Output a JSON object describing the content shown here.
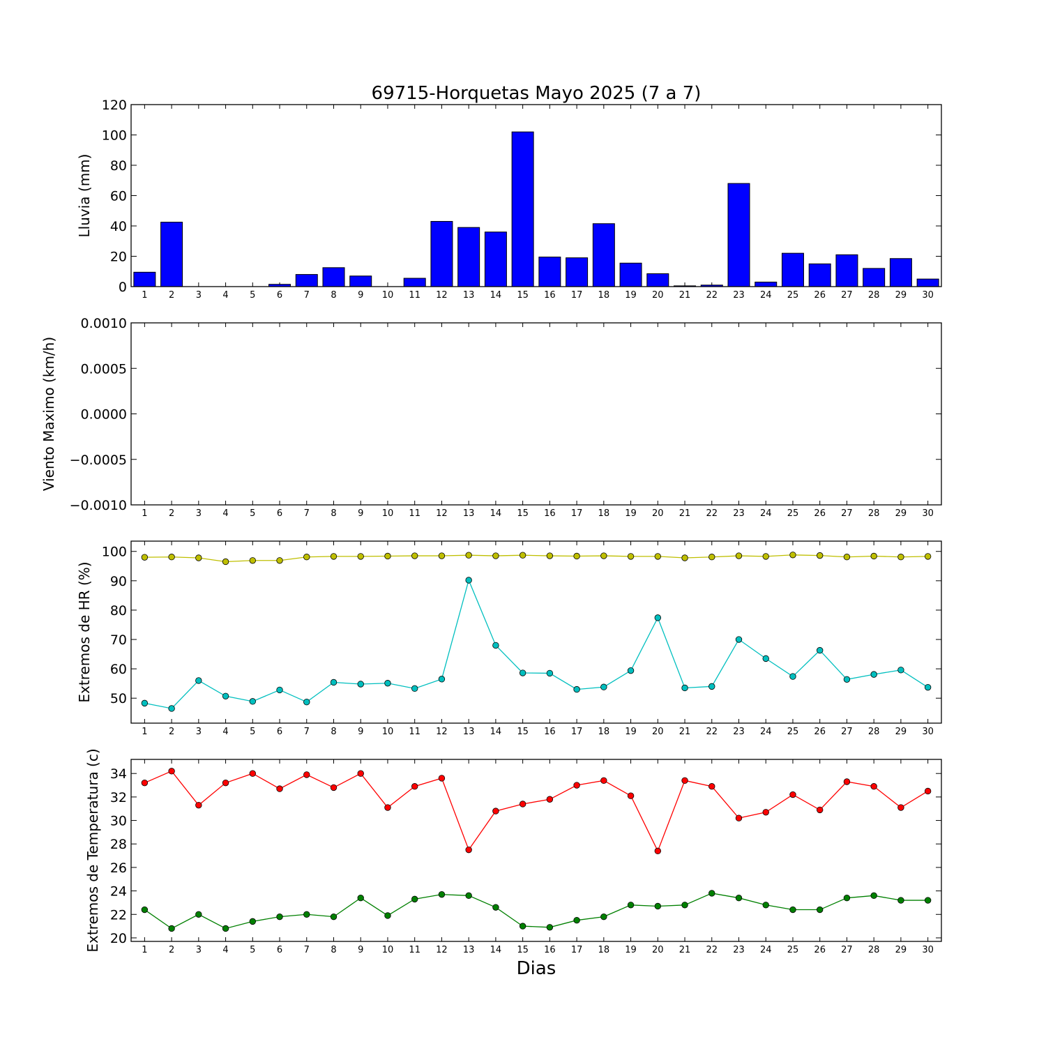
{
  "chart_data": {
    "title": "69715-Horquetas Mayo 2025  (7 a 7)",
    "xlabel": "Dias",
    "days": [
      1,
      2,
      3,
      4,
      5,
      6,
      7,
      8,
      9,
      10,
      11,
      12,
      13,
      14,
      15,
      16,
      17,
      18,
      19,
      20,
      21,
      22,
      23,
      24,
      25,
      26,
      27,
      28,
      29,
      30
    ],
    "panels": [
      {
        "type": "bar",
        "ylabel": "Lluvia (mm)",
        "ylim": [
          0,
          120
        ],
        "yticks": [
          "0",
          "20",
          "40",
          "60",
          "80",
          "100",
          "120"
        ],
        "series": [
          {
            "color": "#0000ff",
            "values": [
              9.5,
              42.5,
              0,
              0,
              0,
              1.5,
              8,
              12.5,
              7,
              0,
              5.5,
              43,
              39,
              36,
              102,
              19.5,
              19,
              41.5,
              15.5,
              8.5,
              0.5,
              1,
              68,
              3,
              22,
              15,
              21,
              12,
              18.5,
              5
            ]
          }
        ]
      },
      {
        "type": "line",
        "ylabel": "Viento Maximo (km/h)",
        "ylim": [
          -0.001,
          0.001
        ],
        "yticks": [
          "−0.0010",
          "−0.0005",
          "0.0000",
          "0.0005",
          "0.0010"
        ],
        "series": []
      },
      {
        "type": "line",
        "ylabel": "Extremos de HR (%)",
        "ylim": [
          41.5,
          103.5
        ],
        "yticks": [
          "50",
          "60",
          "70",
          "80",
          "90",
          "100"
        ],
        "series": [
          {
            "color": "#bfbf00",
            "values": [
              98,
              98.1,
              97.8,
              96.5,
              96.9,
              96.9,
              98.1,
              98.3,
              98.3,
              98.4,
              98.5,
              98.5,
              98.7,
              98.5,
              98.7,
              98.5,
              98.4,
              98.5,
              98.3,
              98.3,
              97.8,
              98.1,
              98.5,
              98.3,
              98.8,
              98.6,
              98.1,
              98.4,
              98.1,
              98.3
            ]
          },
          {
            "color": "#00bfbf",
            "values": [
              48.3,
              46.5,
              56,
              50.7,
              48.9,
              52.8,
              48.7,
              55.4,
              54.8,
              55.1,
              53.3,
              56.5,
              90.2,
              68,
              58.6,
              58.5,
              53,
              53.8,
              59.4,
              77.4,
              53.5,
              54,
              70,
              63.5,
              57.4,
              66.3,
              56.4,
              58.1,
              59.6,
              53.7
            ]
          }
        ]
      },
      {
        "type": "line",
        "ylabel": "Extremos de Temperatura (c)",
        "ylim": [
          19.7,
          35.2
        ],
        "yticks": [
          "20",
          "22",
          "24",
          "26",
          "28",
          "30",
          "32",
          "34"
        ],
        "series": [
          {
            "color": "#ff0000",
            "values": [
              33.2,
              34.2,
              31.3,
              33.2,
              34,
              32.7,
              33.9,
              32.8,
              34,
              31.1,
              32.9,
              33.6,
              27.5,
              30.8,
              31.4,
              31.8,
              33,
              33.4,
              32.1,
              27.4,
              33.4,
              32.9,
              30.2,
              30.7,
              32.2,
              30.9,
              33.3,
              32.9,
              31.1,
              32.5
            ]
          },
          {
            "color": "#008000",
            "values": [
              22.4,
              20.8,
              22,
              20.8,
              21.4,
              21.8,
              22,
              21.8,
              23.4,
              21.9,
              23.3,
              23.7,
              23.6,
              22.6,
              21,
              20.9,
              21.5,
              21.8,
              22.8,
              22.7,
              22.8,
              23.8,
              23.4,
              22.8,
              22.4,
              22.4,
              23.4,
              23.6,
              23.2,
              23.2
            ]
          }
        ]
      }
    ]
  }
}
